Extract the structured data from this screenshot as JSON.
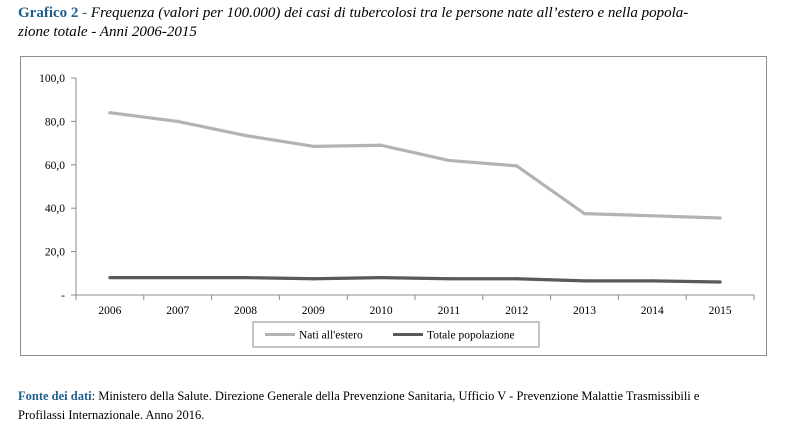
{
  "caption": {
    "label": "Grafico 2",
    "separator": " - ",
    "title": "Frequenza (valori per 100.000) dei casi di tubercolosi tra le persone nate all’estero e nella popolazione totale - Anni 2006-2015",
    "title_line1": "Frequenza (valori per 100.000) dei casi di tubercolosi tra le persone nate all’estero e nella popola-",
    "title_line2": "zione totale - Anni 2006-2015"
  },
  "chart_data": {
    "type": "line",
    "title": "",
    "xlabel": "",
    "ylabel": "",
    "categories": [
      "2006",
      "2007",
      "2008",
      "2009",
      "2010",
      "2011",
      "2012",
      "2013",
      "2014",
      "2015"
    ],
    "y_ticks": [
      "-",
      "20,0",
      "40,0",
      "60,0",
      "80,0",
      "100,0"
    ],
    "ylim": [
      0,
      100
    ],
    "grid": false,
    "legend_position": "bottom",
    "series": [
      {
        "name": "Nati all'estero",
        "color": "#b3b3b3",
        "values": [
          84.0,
          80.0,
          73.5,
          68.5,
          69.0,
          62.0,
          59.5,
          37.5,
          36.5,
          35.5
        ]
      },
      {
        "name": "Totale popolazione",
        "color": "#595959",
        "values": [
          8.0,
          8.0,
          8.0,
          7.5,
          8.0,
          7.5,
          7.5,
          6.5,
          6.5,
          6.0
        ]
      }
    ]
  },
  "source": {
    "label": "Fonte dei dati",
    "text_line1": ": Ministero della Salute. Direzione Generale della Prevenzione Sanitaria, Ufficio V - Prevenzione Malattie Trasmissibili e",
    "text_line2": "Profilassi Internazionale. Anno 2016."
  }
}
